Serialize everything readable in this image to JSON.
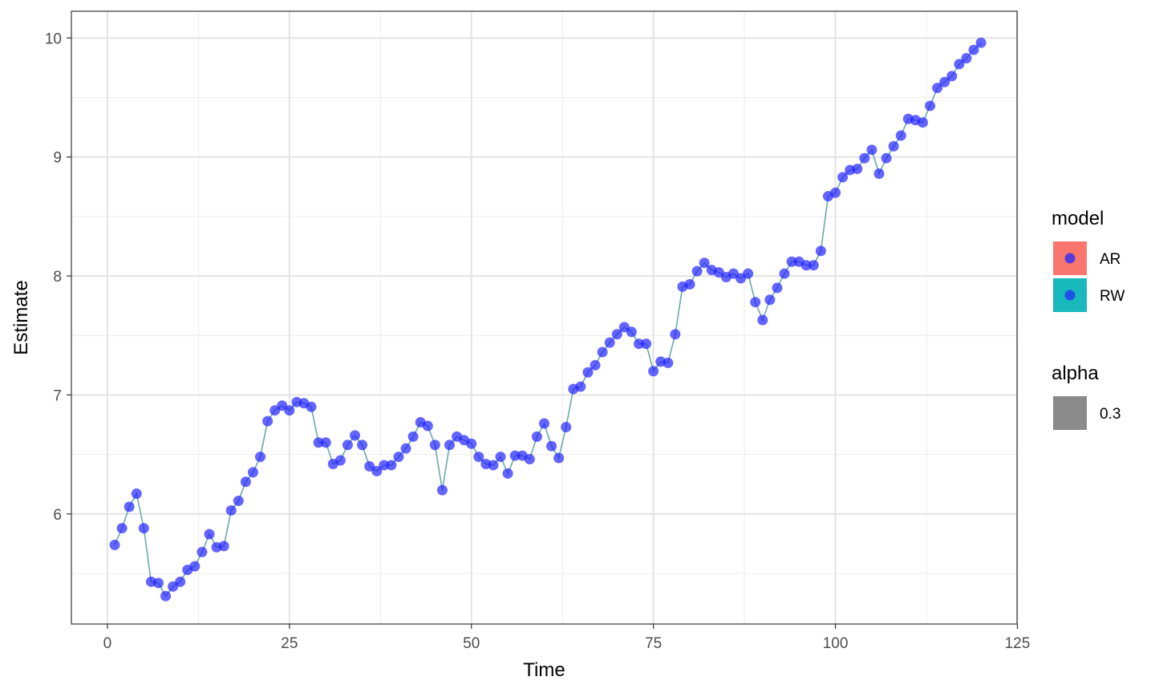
{
  "chart_data": {
    "type": "line",
    "xlabel": "Time",
    "ylabel": "Estimate",
    "xlim": [
      -4.95,
      124.95
    ],
    "ylim": [
      5.075,
      10.225
    ],
    "x_ticks": [
      0,
      25,
      50,
      75,
      100,
      125
    ],
    "x_tick_labels": [
      "0",
      "25",
      "50",
      "75",
      "100",
      "125"
    ],
    "x_minor_ticks": [
      12.5,
      37.5,
      62.5,
      87.5,
      112.5
    ],
    "y_ticks": [
      6,
      7,
      8,
      9,
      10
    ],
    "y_tick_labels": [
      "6",
      "7",
      "8",
      "9",
      "10"
    ],
    "y_minor_ticks": [
      5.5,
      6.5,
      7.5,
      8.5,
      9.5
    ],
    "grid": true,
    "legend_position": "right",
    "line_color": "#6aa8ae",
    "point_color": "#2222ff",
    "point_alpha": 0.7,
    "legends": [
      {
        "title": "model",
        "items": [
          {
            "label": "AR",
            "fill": "#f8766d",
            "dot": "#3a33ee"
          },
          {
            "label": "RW",
            "fill": "#18b8bd",
            "dot": "#1f3fee"
          }
        ]
      },
      {
        "title": "alpha",
        "items": [
          {
            "label": "0.3",
            "fill": "#8a8a8a"
          }
        ]
      }
    ],
    "series": [
      {
        "x": [
          1,
          2,
          3,
          4,
          5,
          6,
          7,
          8,
          9,
          10,
          11,
          12,
          13,
          14,
          15,
          16,
          17,
          18,
          19,
          20,
          21,
          22,
          23,
          24,
          25,
          26,
          27,
          28,
          29,
          30,
          31,
          32,
          33,
          34,
          35,
          36,
          37,
          38,
          39,
          40,
          41,
          42,
          43,
          44,
          45,
          46,
          47,
          48,
          49,
          50,
          51,
          52,
          53,
          54,
          55,
          56,
          57,
          58,
          59,
          60,
          61,
          62,
          63,
          64,
          65,
          66,
          67,
          68,
          69,
          70,
          71,
          72,
          73,
          74,
          75,
          76,
          77,
          78,
          79,
          80,
          81,
          82,
          83,
          84,
          85,
          86,
          87,
          88,
          89,
          90,
          91,
          92,
          93,
          94,
          95,
          96,
          97,
          98,
          99,
          100,
          101,
          102,
          103,
          104,
          105,
          106,
          107,
          108,
          109,
          110,
          111,
          112,
          113,
          114,
          115,
          116,
          117,
          118,
          119,
          120
        ],
        "y": [
          5.74,
          5.88,
          6.06,
          6.17,
          5.88,
          5.43,
          5.42,
          5.31,
          5.39,
          5.43,
          5.53,
          5.56,
          5.68,
          5.83,
          5.72,
          5.73,
          6.03,
          6.11,
          6.27,
          6.35,
          6.48,
          6.78,
          6.87,
          6.91,
          6.87,
          6.94,
          6.93,
          6.9,
          6.6,
          6.6,
          6.42,
          6.45,
          6.58,
          6.66,
          6.58,
          6.4,
          6.36,
          6.41,
          6.41,
          6.48,
          6.55,
          6.65,
          6.77,
          6.74,
          6.58,
          6.2,
          6.58,
          6.65,
          6.62,
          6.59,
          6.48,
          6.42,
          6.41,
          6.48,
          6.34,
          6.49,
          6.49,
          6.46,
          6.65,
          6.76,
          6.57,
          6.47,
          6.73,
          7.05,
          7.07,
          7.19,
          7.25,
          7.36,
          7.44,
          7.51,
          7.57,
          7.53,
          7.43,
          7.43,
          7.2,
          7.28,
          7.27,
          7.51,
          7.91,
          7.93,
          8.04,
          8.11,
          8.05,
          8.03,
          7.99,
          8.02,
          7.98,
          8.02,
          7.78,
          7.63,
          7.8,
          7.9,
          8.02,
          8.12,
          8.12,
          8.09,
          8.09,
          8.21,
          8.67,
          8.7,
          8.83,
          8.89,
          8.9,
          8.99,
          9.06,
          8.86,
          8.99,
          9.09,
          9.18,
          9.32,
          9.31,
          9.29,
          9.43,
          9.58,
          9.63,
          9.68,
          9.78,
          9.83,
          9.9,
          9.96
        ]
      }
    ]
  }
}
